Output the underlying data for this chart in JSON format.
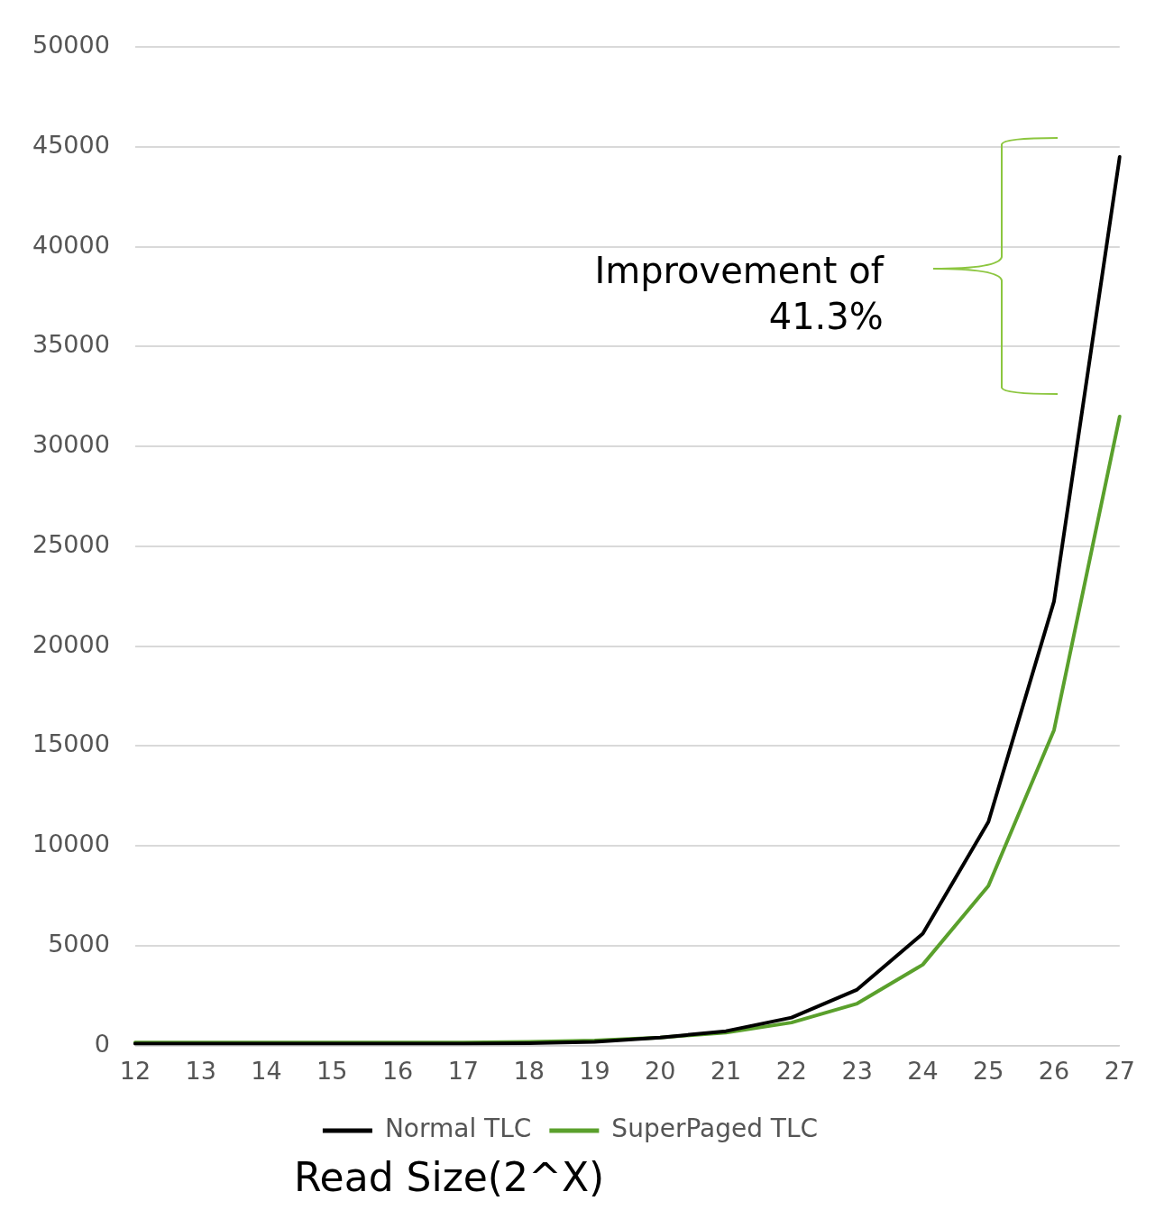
{
  "chart_data": {
    "type": "line",
    "xlabel": "Read Size(2^X)",
    "categories": [
      "12",
      "13",
      "14",
      "15",
      "16",
      "17",
      "18",
      "19",
      "20",
      "21",
      "22",
      "23",
      "24",
      "25",
      "26",
      "27"
    ],
    "series": [
      {
        "name": "Normal TLC",
        "color": "#000000",
        "values": [
          100,
          100,
          100,
          100,
          100,
          100,
          120,
          180,
          400,
          720,
          1400,
          2800,
          5600,
          11200,
          22250,
          44500
        ]
      },
      {
        "name": "SuperPaged TLC",
        "color": "#5aa02c",
        "values": [
          150,
          150,
          150,
          150,
          150,
          150,
          180,
          250,
          400,
          650,
          1150,
          2100,
          4050,
          8000,
          15800,
          31500
        ]
      }
    ],
    "ylim": [
      0,
      50000
    ],
    "yticks": [
      0,
      5000,
      10000,
      15000,
      20000,
      25000,
      30000,
      35000,
      40000,
      45000,
      50000
    ],
    "grid": "y",
    "legend": "bottom",
    "marker": "none",
    "line_style": "solid",
    "annotations": [
      "Improvement of\n41.3%"
    ]
  }
}
